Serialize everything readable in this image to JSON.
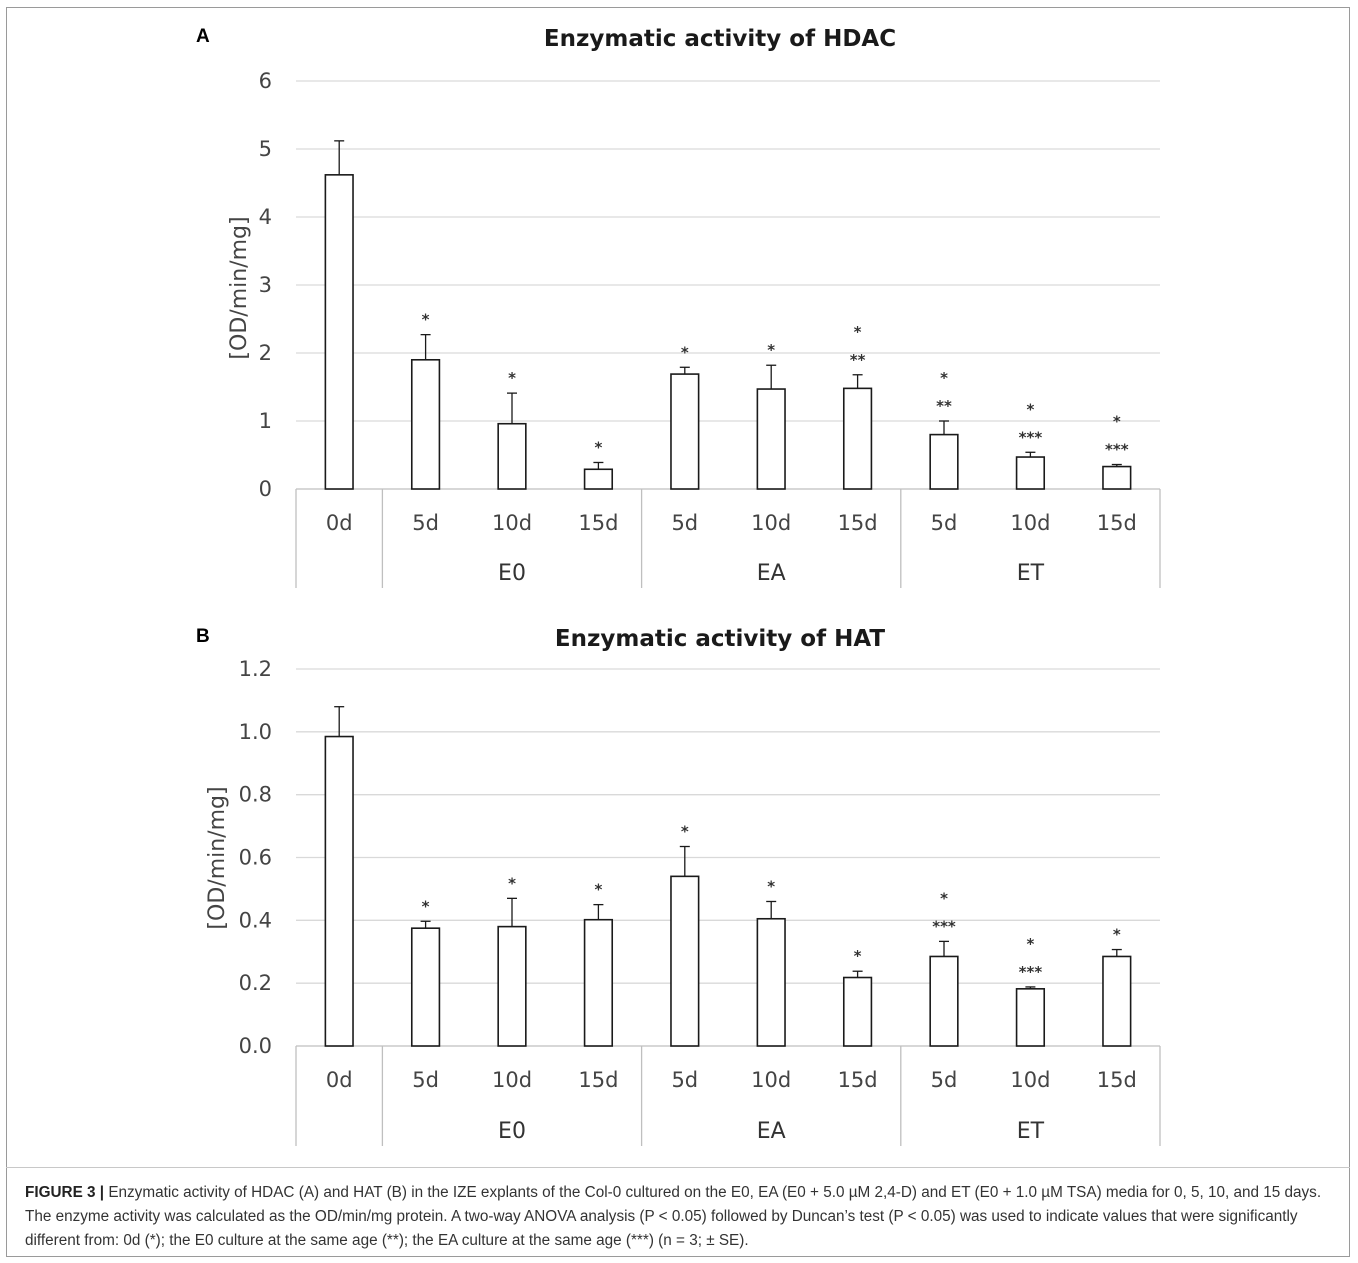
{
  "charts": [
    {
      "panel_letter": "A",
      "chart_data": {
        "type": "bar",
        "title": "Enzymatic activity of HDAC",
        "ylabel": "[OD/min/mg]",
        "xlabel": "",
        "ylim": [
          0,
          6
        ],
        "yticks": [
          "0",
          "1",
          "2",
          "3",
          "4",
          "5",
          "6"
        ],
        "categories": [
          "0d",
          "5d",
          "10d",
          "15d",
          "5d",
          "10d",
          "15d",
          "5d",
          "10d",
          "15d"
        ],
        "groups": [
          {
            "label": "",
            "span": [
              0,
              0
            ]
          },
          {
            "label": "E0",
            "span": [
              1,
              3
            ]
          },
          {
            "label": "EA",
            "span": [
              4,
              6
            ]
          },
          {
            "label": "ET",
            "span": [
              7,
              9
            ]
          }
        ],
        "values": [
          4.62,
          1.9,
          0.96,
          0.29,
          1.69,
          1.47,
          1.48,
          0.8,
          0.47,
          0.33
        ],
        "errors": [
          0.5,
          0.37,
          0.45,
          0.1,
          0.1,
          0.35,
          0.2,
          0.2,
          0.07,
          0.03
        ],
        "significance": [
          [],
          [
            "*"
          ],
          [
            "*"
          ],
          [
            "*"
          ],
          [
            "*"
          ],
          [
            "*"
          ],
          [
            "*",
            "**"
          ],
          [
            "*",
            "**"
          ],
          [
            "*",
            "***"
          ],
          [
            "*",
            "***"
          ]
        ],
        "grid": true
      }
    },
    {
      "panel_letter": "B",
      "chart_data": {
        "type": "bar",
        "title": "Enzymatic activity of HAT",
        "ylabel": "[OD/min/mg]",
        "xlabel": "",
        "ylim": [
          0,
          1.2
        ],
        "yticks": [
          "0.0",
          "0.2",
          "0.4",
          "0.6",
          "0.8",
          "1.0",
          "1.2"
        ],
        "categories": [
          "0d",
          "5d",
          "10d",
          "15d",
          "5d",
          "10d",
          "15d",
          "5d",
          "10d",
          "15d"
        ],
        "groups": [
          {
            "label": "",
            "span": [
              0,
              0
            ]
          },
          {
            "label": "E0",
            "span": [
              1,
              3
            ]
          },
          {
            "label": "EA",
            "span": [
              4,
              6
            ]
          },
          {
            "label": "ET",
            "span": [
              7,
              9
            ]
          }
        ],
        "values": [
          0.985,
          0.375,
          0.38,
          0.402,
          0.54,
          0.405,
          0.218,
          0.285,
          0.182,
          0.285
        ],
        "errors": [
          0.095,
          0.022,
          0.09,
          0.048,
          0.095,
          0.055,
          0.02,
          0.048,
          0.006,
          0.022
        ],
        "significance": [
          [],
          [
            "*"
          ],
          [
            "*"
          ],
          [
            "*"
          ],
          [
            "*"
          ],
          [
            "*"
          ],
          [
            "*"
          ],
          [
            "*",
            "***"
          ],
          [
            "*",
            "***"
          ],
          [
            "*"
          ]
        ],
        "grid": true
      }
    }
  ],
  "caption": {
    "label": "FIGURE 3 |",
    "text": " Enzymatic activity of HDAC (A) and HAT (B) in the IZE explants of the Col-0 cultured on the E0, EA (E0 + 5.0 µM 2,4-D) and ET (E0 + 1.0 µM TSA) media for 0, 5, 10, and 15 days. The enzyme activity was calculated as the OD/min/mg protein. A two-way ANOVA analysis (P < 0.05) followed by Duncan’s test (P < 0.05) was used to indicate values that were significantly different from: 0d (*); the E0 culture at the same age (**); the EA culture at the same age (***) (n = 3; ± SE)."
  },
  "colors": {
    "bar_fill": "#ffffff",
    "bar_stroke": "#1a1a1a",
    "grid": "#d9d9d9",
    "axis": "#bfbfbf",
    "text": "#444444"
  }
}
